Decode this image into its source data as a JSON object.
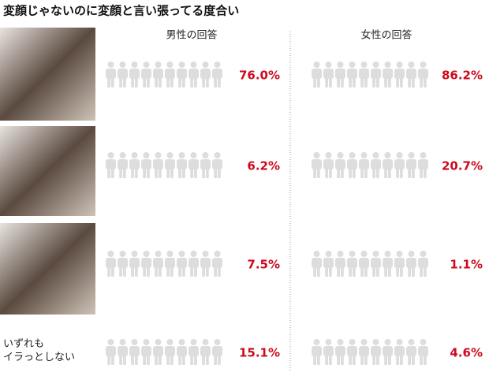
{
  "chart_data": {
    "type": "pictogram",
    "title": "変顔じゃないのに変顔と言い張ってる度合い",
    "categories": [
      null,
      null,
      null,
      "いずれも\nイラっとしない"
    ],
    "series": [
      {
        "name": "男性の回答",
        "color": "#cc0a1e",
        "values": [
          76.0,
          6.2,
          7.5,
          15.1
        ],
        "value_labels": [
          "76.0%",
          "6.2%",
          "7.5%",
          "15.1%"
        ]
      },
      {
        "name": "女性の回答",
        "color": "#cc0a1e",
        "values": [
          86.2,
          20.7,
          1.1,
          4.6
        ],
        "value_labels": [
          "86.2%",
          "20.7%",
          "1.1%",
          "4.6%"
        ]
      }
    ],
    "empty_color": "#dddddd"
  }
}
